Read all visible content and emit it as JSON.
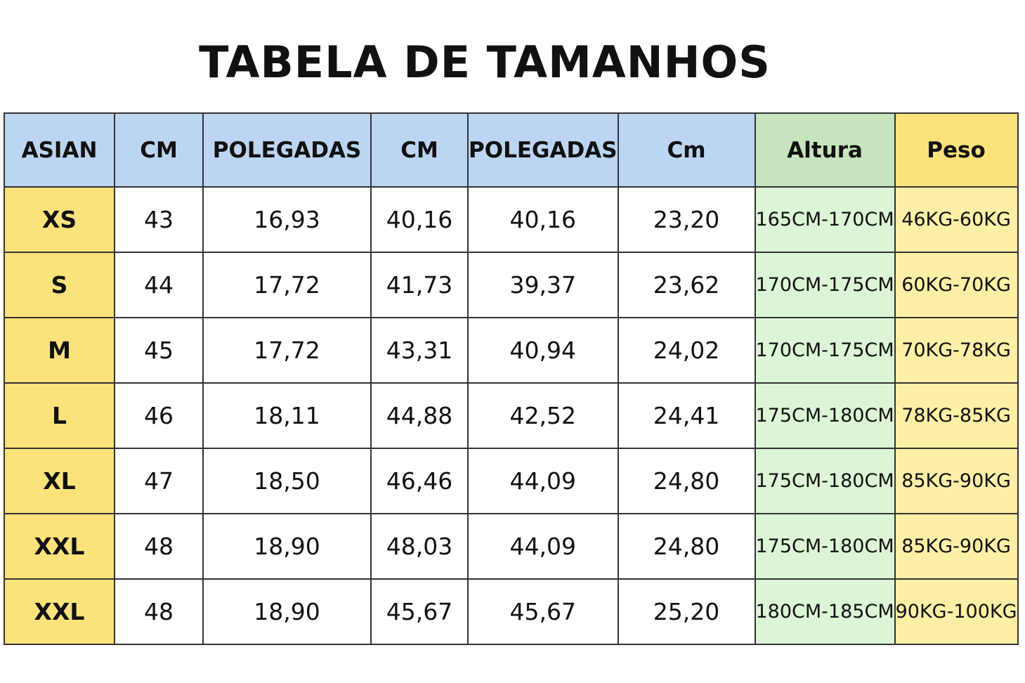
{
  "title": "TABELA DE TAMANHOS",
  "table": {
    "header": [
      "ASIAN",
      "CM",
      "POLEGADAS",
      "CM",
      "POLEGADAS",
      "Cm",
      "Altura",
      "Peso"
    ],
    "rows": [
      [
        "XS",
        "43",
        "16,93",
        "40,16",
        "40,16",
        "23,20",
        "165CM-170CM",
        "46KG-60KG"
      ],
      [
        "S",
        "44",
        "17,72",
        "41,73",
        "39,37",
        "23,62",
        "170CM-175CM",
        "60KG-70KG"
      ],
      [
        "M",
        "45",
        "17,72",
        "43,31",
        "40,94",
        "24,02",
        "170CM-175CM",
        "70KG-78KG"
      ],
      [
        "L",
        "46",
        "18,11",
        "44,88",
        "42,52",
        "24,41",
        "175CM-180CM",
        "78KG-85KG"
      ],
      [
        "XL",
        "47",
        "18,50",
        "46,46",
        "44,09",
        "24,80",
        "175CM-180CM",
        "85KG-90KG"
      ],
      [
        "XXL",
        "48",
        "18,90",
        "48,03",
        "44,09",
        "24,80",
        "175CM-180CM",
        "85KG-90KG"
      ],
      [
        "XXL",
        "48",
        "18,90",
        "45,67",
        "45,67",
        "25,20",
        "180CM-185CM",
        "90KG-100KG"
      ]
    ]
  }
}
